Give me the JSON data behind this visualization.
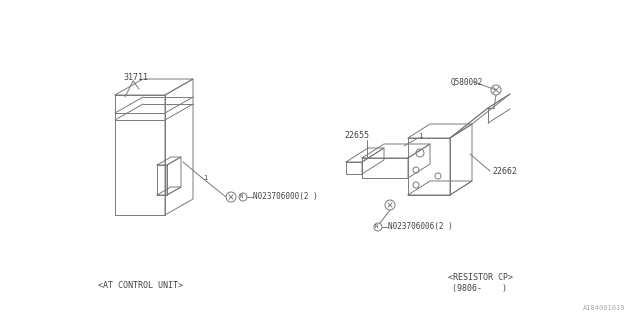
{
  "bg_color": "#ffffff",
  "line_color": "#7a7a7a",
  "text_color": "#444444",
  "label_at_control": "<AT CONTROL UNIT>",
  "label_resistor_line1": "<RESISTOR CP>",
  "label_resistor_line2": "(9806-    )",
  "part_31711": "31711",
  "part_n023706000": "N023706000(2 )",
  "part_q580002": "Q580002",
  "part_22655": "22655",
  "part_22662": "22662",
  "part_n023706006": "N023706006(2 )",
  "watermark": "A184001019",
  "fig_width": 6.4,
  "fig_height": 3.2,
  "dpi": 100
}
